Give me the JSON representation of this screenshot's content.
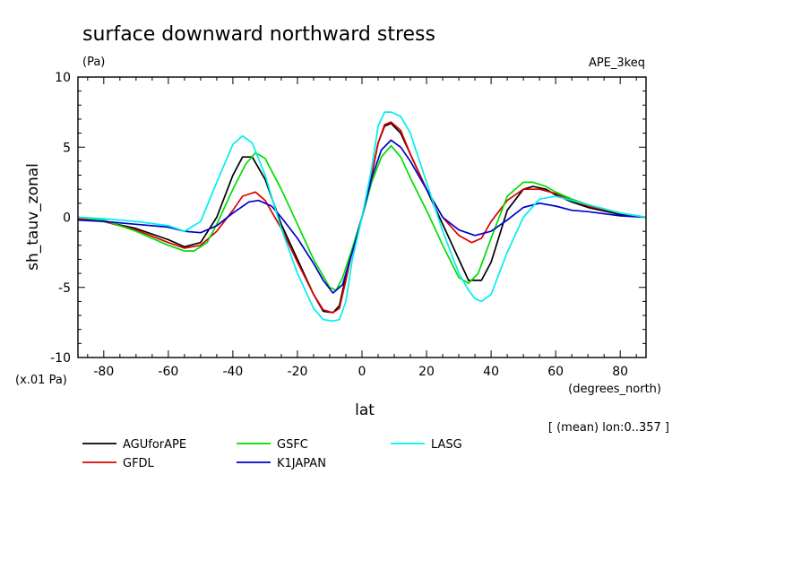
{
  "chart_data": {
    "type": "line",
    "title": "surface downward northward stress",
    "units_label": "(Pa)",
    "experiment": "APE_3keq",
    "ylabel": "sh_tauv_zonal",
    "xlabel": "lat",
    "x_units": "(degrees_north)",
    "y_scale_note": "(x.01 Pa)",
    "subset_note": "[ (mean) lon:0..357 ]",
    "xlim": [
      -88,
      88
    ],
    "ylim": [
      -10,
      10
    ],
    "x_ticks": [
      -80,
      -60,
      -40,
      -20,
      0,
      20,
      40,
      60,
      80
    ],
    "x_tick_labels": [
      "-80",
      "-60",
      "-40",
      "-20",
      "0",
      "20",
      "40",
      "60",
      "80"
    ],
    "y_ticks": [
      -10,
      -5,
      0,
      5,
      10
    ],
    "y_tick_labels": [
      "-10",
      "-5",
      "0",
      "5",
      "10"
    ],
    "grid": false,
    "legend_position": "bottom",
    "series": [
      {
        "name": "AGUforAPE",
        "color": "#000000",
        "x": [
          -88,
          -80,
          -70,
          -60,
          -55,
          -50,
          -45,
          -40,
          -37,
          -34,
          -30,
          -25,
          -20,
          -15,
          -12,
          -9,
          -7,
          -5,
          -3,
          0,
          3,
          5,
          7,
          9,
          12,
          15,
          20,
          25,
          30,
          33,
          37,
          40,
          45,
          50,
          53,
          57,
          60,
          65,
          70,
          80,
          88
        ],
        "values": [
          -0.1,
          -0.3,
          -0.8,
          -1.6,
          -2.1,
          -1.8,
          0.0,
          3.0,
          4.3,
          4.3,
          2.7,
          -0.5,
          -3.0,
          -5.5,
          -6.7,
          -6.8,
          -6.3,
          -4.2,
          -2.3,
          0.0,
          3.0,
          5.3,
          6.5,
          6.7,
          6.0,
          4.5,
          2.0,
          -0.5,
          -3.0,
          -4.5,
          -4.5,
          -3.2,
          0.5,
          2.0,
          2.2,
          2.0,
          1.6,
          1.1,
          0.7,
          0.2,
          0.0
        ]
      },
      {
        "name": "GFDL",
        "color": "#dd0000",
        "x": [
          -88,
          -80,
          -70,
          -60,
          -55,
          -50,
          -45,
          -40,
          -37,
          -33,
          -30,
          -25,
          -20,
          -15,
          -12,
          -9,
          -7,
          -5,
          -3,
          0,
          3,
          5,
          7,
          9,
          12,
          15,
          20,
          25,
          30,
          34,
          37,
          40,
          45,
          50,
          55,
          60,
          65,
          70,
          80,
          88
        ],
        "values": [
          -0.1,
          -0.3,
          -0.9,
          -1.8,
          -2.2,
          -2.0,
          -1.0,
          0.5,
          1.5,
          1.8,
          1.2,
          -0.8,
          -3.2,
          -5.5,
          -6.6,
          -6.8,
          -6.5,
          -4.5,
          -2.3,
          0.0,
          3.0,
          5.3,
          6.6,
          6.8,
          6.2,
          4.5,
          2.0,
          0.0,
          -1.3,
          -1.8,
          -1.5,
          -0.3,
          1.2,
          2.0,
          2.0,
          1.7,
          1.2,
          0.8,
          0.3,
          0.0
        ]
      },
      {
        "name": "GSFC",
        "color": "#00dd00",
        "x": [
          -88,
          -80,
          -70,
          -60,
          -55,
          -52,
          -48,
          -45,
          -40,
          -36,
          -33,
          -30,
          -25,
          -20,
          -15,
          -10,
          -8,
          -6,
          -3,
          0,
          3,
          6,
          9,
          12,
          15,
          20,
          25,
          30,
          33,
          36,
          40,
          45,
          50,
          53,
          57,
          60,
          65,
          70,
          80,
          88
        ],
        "values": [
          0.0,
          -0.2,
          -1.0,
          -2.0,
          -2.4,
          -2.4,
          -1.8,
          -0.5,
          2.0,
          3.8,
          4.6,
          4.2,
          2.0,
          -0.5,
          -3.0,
          -5.0,
          -5.2,
          -4.3,
          -2.2,
          0.0,
          2.5,
          4.3,
          5.1,
          4.3,
          2.8,
          0.5,
          -2.0,
          -4.3,
          -4.7,
          -4.0,
          -1.5,
          1.5,
          2.5,
          2.5,
          2.2,
          1.8,
          1.3,
          0.9,
          0.3,
          0.0
        ]
      },
      {
        "name": "K1JAPAN",
        "color": "#0000cc",
        "x": [
          -88,
          -80,
          -70,
          -60,
          -55,
          -50,
          -45,
          -40,
          -35,
          -32,
          -28,
          -25,
          -20,
          -15,
          -12,
          -9,
          -6,
          -3,
          0,
          3,
          6,
          9,
          12,
          15,
          20,
          25,
          30,
          35,
          40,
          45,
          50,
          55,
          60,
          65,
          70,
          80,
          88
        ],
        "values": [
          -0.2,
          -0.3,
          -0.5,
          -0.7,
          -1.0,
          -1.1,
          -0.6,
          0.3,
          1.1,
          1.2,
          0.8,
          0.0,
          -1.5,
          -3.3,
          -4.5,
          -5.4,
          -4.8,
          -2.5,
          0.0,
          2.8,
          4.8,
          5.5,
          5.0,
          4.0,
          2.0,
          0.0,
          -0.9,
          -1.3,
          -1.0,
          -0.2,
          0.7,
          1.0,
          0.8,
          0.5,
          0.4,
          0.1,
          0.0
        ]
      },
      {
        "name": "LASG",
        "color": "#00eeee",
        "x": [
          -88,
          -80,
          -70,
          -60,
          -55,
          -50,
          -45,
          -40,
          -37,
          -34,
          -30,
          -25,
          -20,
          -15,
          -12,
          -9,
          -7,
          -5,
          -3,
          0,
          3,
          5,
          7,
          9,
          12,
          15,
          20,
          25,
          30,
          33,
          35,
          37,
          40,
          45,
          50,
          55,
          60,
          65,
          70,
          80,
          88
        ],
        "values": [
          0.0,
          -0.1,
          -0.3,
          -0.6,
          -1.0,
          -0.3,
          2.5,
          5.2,
          5.8,
          5.3,
          3.0,
          -0.8,
          -4.0,
          -6.5,
          -7.3,
          -7.4,
          -7.3,
          -6.0,
          -3.0,
          0.0,
          3.5,
          6.5,
          7.5,
          7.5,
          7.2,
          6.0,
          2.5,
          -1.0,
          -4.0,
          -5.2,
          -5.8,
          -6.0,
          -5.5,
          -2.5,
          0.0,
          1.3,
          1.5,
          1.2,
          0.9,
          0.3,
          0.0
        ]
      }
    ]
  }
}
